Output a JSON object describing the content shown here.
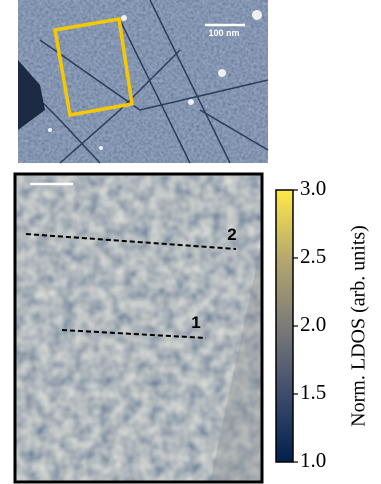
{
  "top_image": {
    "scale_bar_label": "100 nm"
  },
  "map": {
    "line_labels": [
      "1",
      "2"
    ]
  },
  "colorbar": {
    "label": "Norm. LDOS (arb. units)",
    "lim": [
      1,
      3
    ],
    "ticks": [
      {
        "value": 1,
        "label": "1.0"
      },
      {
        "value": 1.5,
        "label": "1.5"
      },
      {
        "value": 2,
        "label": "2.0"
      },
      {
        "value": 2.5,
        "label": "2.5"
      },
      {
        "value": 3,
        "label": "3.0"
      }
    ]
  }
}
